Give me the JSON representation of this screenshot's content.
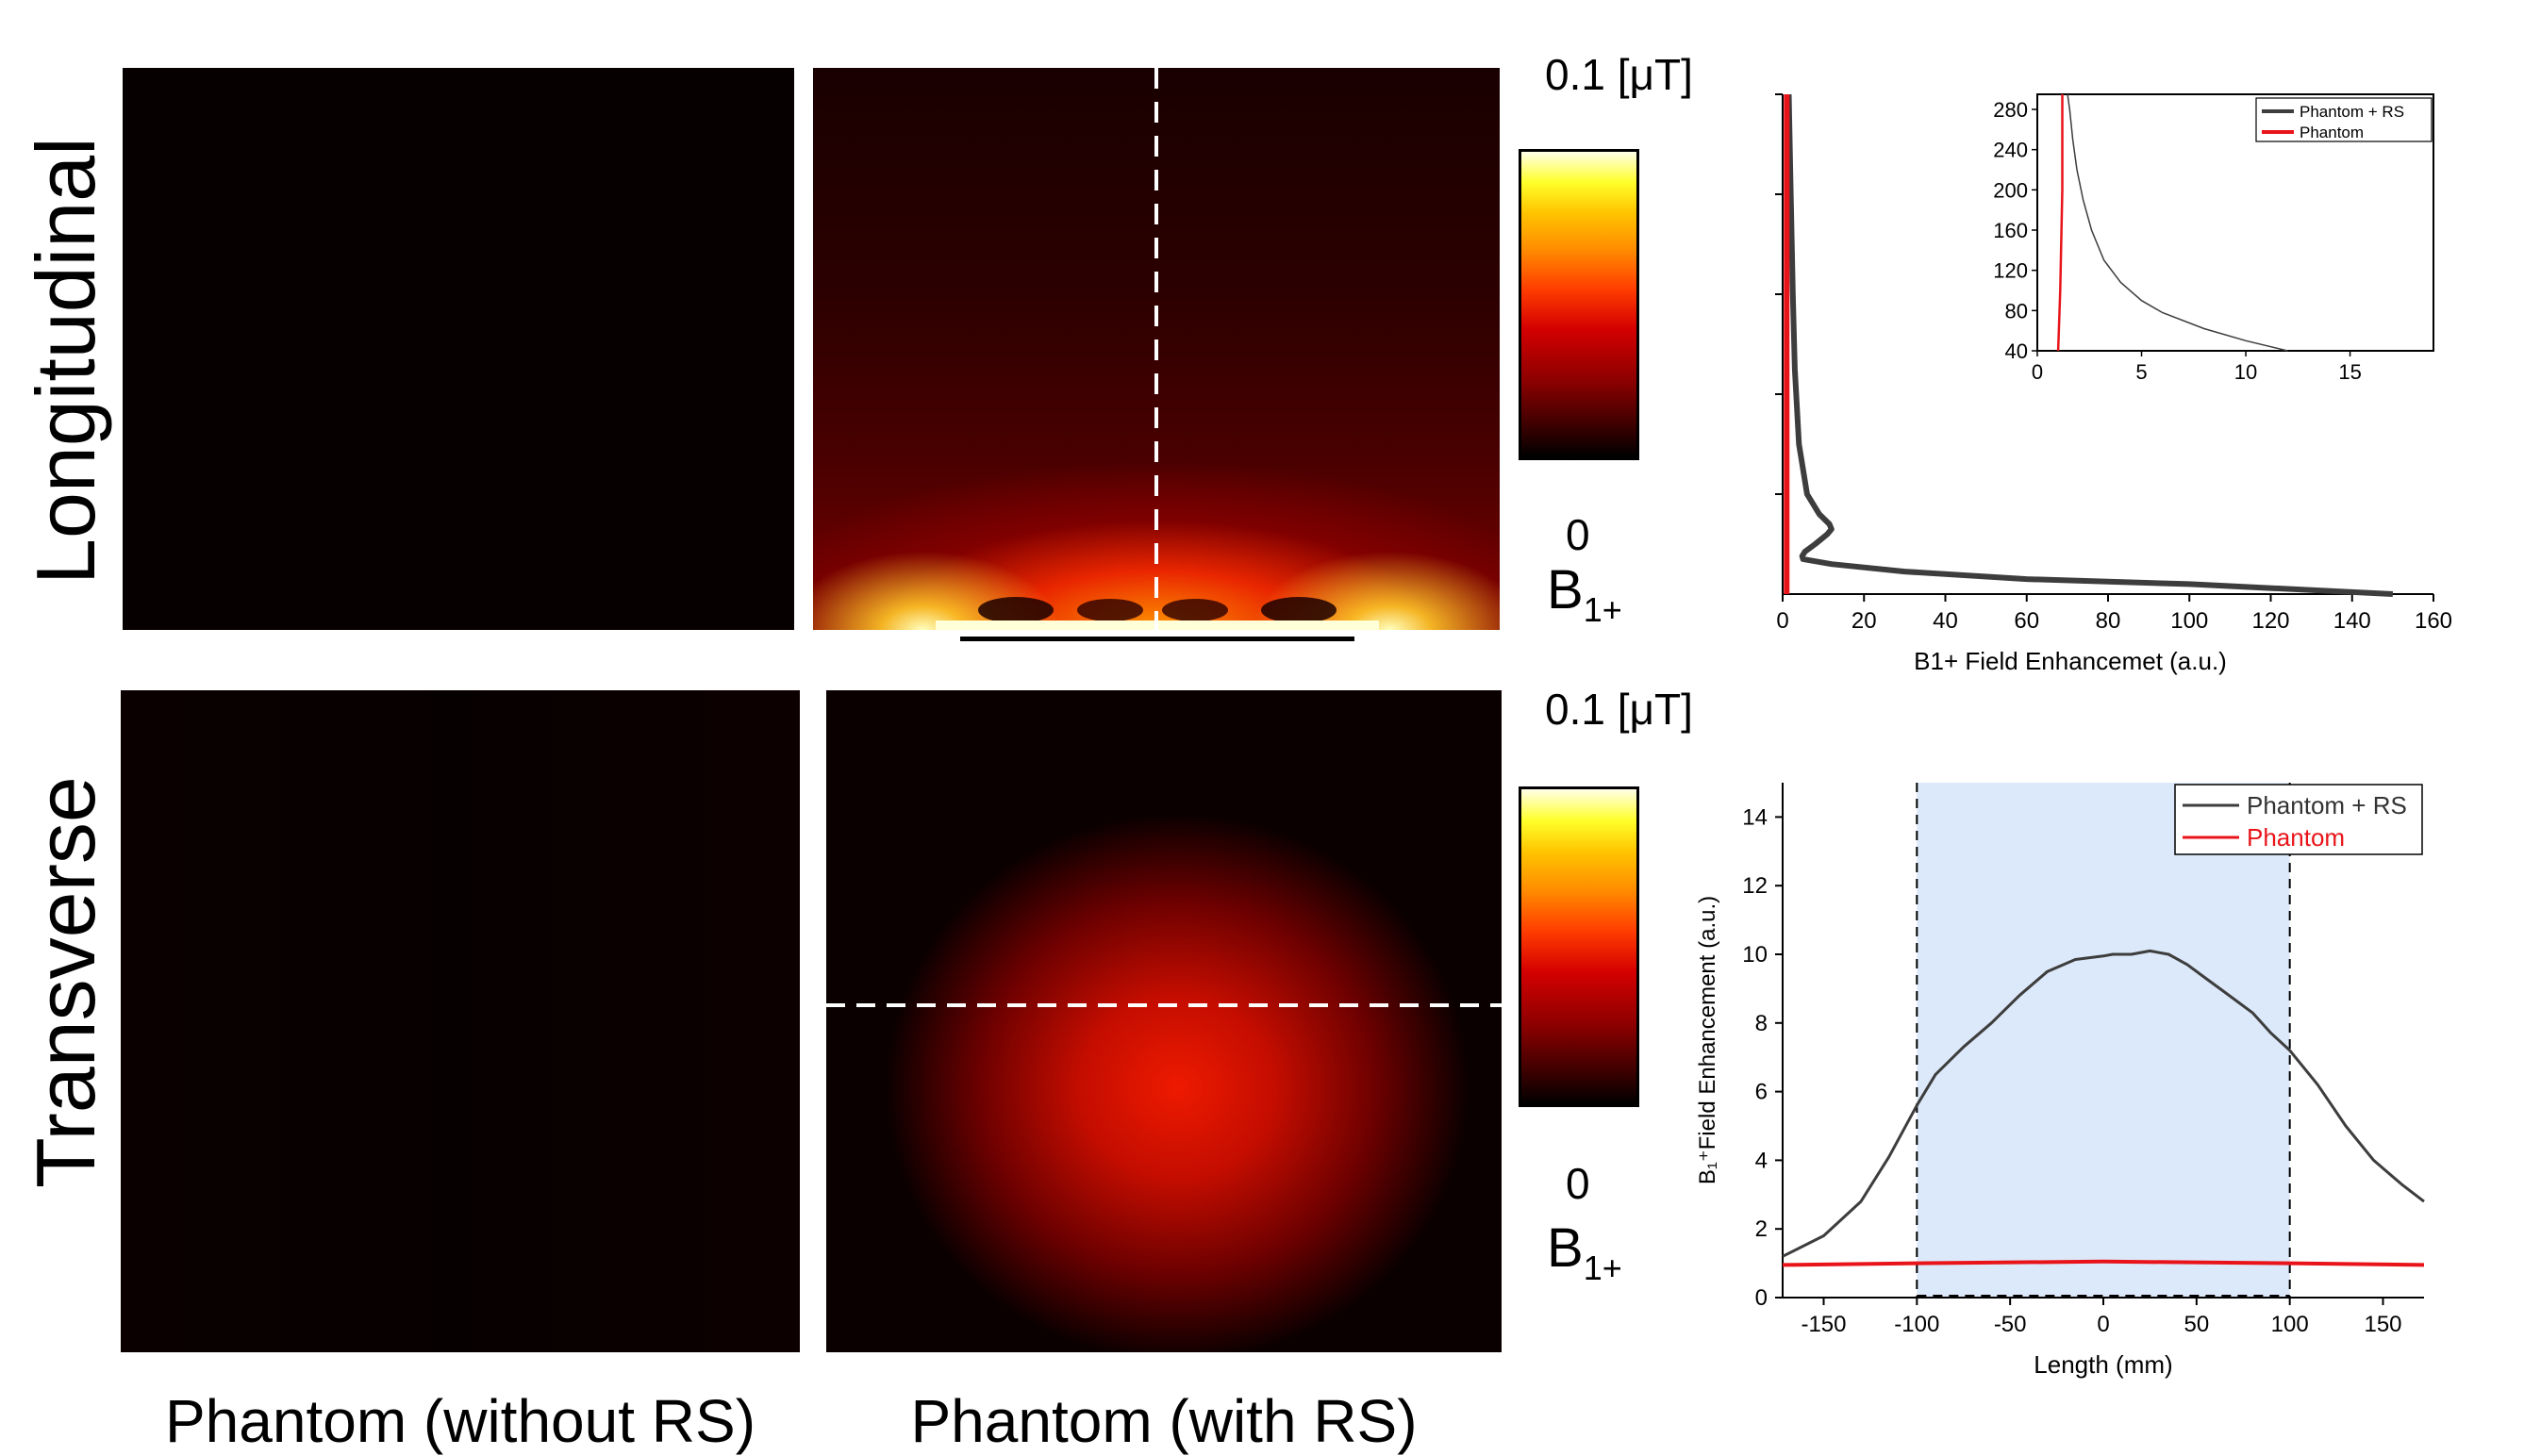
{
  "row_labels": {
    "top": "Longitudinal",
    "bottom": "Transverse"
  },
  "column_labels": {
    "left": "Phantom (without RS)",
    "right": "Phantom (with RS)"
  },
  "colorbars": [
    {
      "max_label": "0.1",
      "unit": "[μT]",
      "min_label": "0",
      "quantity": "B",
      "quantity_sub": "1+"
    },
    {
      "max_label": "0.1",
      "unit": "[μT]",
      "min_label": "0",
      "quantity": "B",
      "quantity_sub": "1+"
    }
  ],
  "colors": {
    "phantom_rs": "#3d3d3d",
    "phantom": "#e8141a",
    "shade": "#dce9fa"
  },
  "chart_data": [
    {
      "type": "line",
      "title": "",
      "xlabel": "B1+ Field Enhancemet (a.u.)",
      "ylabel": "",
      "xlim": [
        0,
        160
      ],
      "x_ticks": [
        "0",
        "20",
        "40",
        "60",
        "80",
        "100",
        "120",
        "140",
        "160"
      ],
      "series": [
        {
          "name": "Phantom + RS",
          "points": [
            [
              150,
              0
            ],
            [
              100,
              2
            ],
            [
              60,
              3
            ],
            [
              30,
              4.5
            ],
            [
              12,
              6
            ],
            [
              5,
              7
            ],
            [
              4.8,
              7.6
            ],
            [
              5.5,
              8.5
            ],
            [
              8,
              10
            ],
            [
              11,
              12
            ],
            [
              12,
              13
            ],
            [
              11.5,
              14
            ],
            [
              9,
              16
            ],
            [
              6,
              20
            ],
            [
              4,
              30
            ],
            [
              3,
              45
            ],
            [
              2.5,
              60
            ],
            [
              2,
              80
            ],
            [
              1.5,
              100
            ]
          ]
        },
        {
          "name": "Phantom",
          "points": [
            [
              1,
              0
            ],
            [
              1,
              50
            ],
            [
              1,
              100
            ]
          ]
        }
      ],
      "legend": [
        "Phantom + RS",
        "Phantom"
      ],
      "inset": {
        "xlim": [
          0,
          19
        ],
        "ylim": [
          40,
          295
        ],
        "x_ticks": [
          "0",
          "5",
          "10",
          "15"
        ],
        "y_ticks": [
          "40",
          "80",
          "120",
          "160",
          "200",
          "240",
          "280"
        ],
        "series": [
          {
            "name": "Phantom + RS",
            "points": [
              [
                12,
                40
              ],
              [
                10,
                50
              ],
              [
                8,
                62
              ],
              [
                6,
                78
              ],
              [
                5,
                90
              ],
              [
                4,
                108
              ],
              [
                3.2,
                130
              ],
              [
                2.6,
                160
              ],
              [
                2.2,
                190
              ],
              [
                1.9,
                220
              ],
              [
                1.7,
                250
              ],
              [
                1.55,
                280
              ],
              [
                1.45,
                295
              ]
            ]
          },
          {
            "name": "Phantom",
            "points": [
              [
                1.0,
                40
              ],
              [
                1.1,
                100
              ],
              [
                1.15,
                150
              ],
              [
                1.2,
                200
              ],
              [
                1.2,
                295
              ]
            ]
          }
        ],
        "legend": [
          "Phantom + RS",
          "Phantom"
        ]
      }
    },
    {
      "type": "line",
      "title": "",
      "xlabel": "Length (mm)",
      "ylabel": "B₁⁺Field Enhancement (a.u.)",
      "xlim": [
        -172,
        172
      ],
      "ylim": [
        0,
        15
      ],
      "x_ticks": [
        "-150",
        "-100",
        "-50",
        "0",
        "50",
        "100",
        "150"
      ],
      "y_ticks": [
        "0",
        "2",
        "4",
        "6",
        "8",
        "10",
        "12",
        "14"
      ],
      "shaded_region": [
        -100,
        100
      ],
      "vlines": [
        -100,
        100
      ],
      "series": [
        {
          "name": "Phantom + RS",
          "points": [
            [
              -172,
              1.2
            ],
            [
              -150,
              1.8
            ],
            [
              -130,
              2.8
            ],
            [
              -115,
              4.1
            ],
            [
              -100,
              5.6
            ],
            [
              -90,
              6.5
            ],
            [
              -75,
              7.3
            ],
            [
              -60,
              8.0
            ],
            [
              -45,
              8.8
            ],
            [
              -30,
              9.5
            ],
            [
              -15,
              9.85
            ],
            [
              0,
              9.95
            ],
            [
              5,
              10.0
            ],
            [
              15,
              10.0
            ],
            [
              25,
              10.1
            ],
            [
              35,
              10.0
            ],
            [
              45,
              9.7
            ],
            [
              55,
              9.3
            ],
            [
              65,
              8.9
            ],
            [
              80,
              8.3
            ],
            [
              90,
              7.7
            ],
            [
              100,
              7.2
            ],
            [
              115,
              6.2
            ],
            [
              130,
              5.0
            ],
            [
              145,
              4.0
            ],
            [
              160,
              3.3
            ],
            [
              172,
              2.8
            ]
          ]
        },
        {
          "name": "Phantom",
          "points": [
            [
              -172,
              0.95
            ],
            [
              -100,
              1.0
            ],
            [
              0,
              1.05
            ],
            [
              100,
              1.0
            ],
            [
              172,
              0.95
            ]
          ]
        }
      ],
      "legend": [
        "Phantom + RS",
        "Phantom"
      ]
    }
  ]
}
